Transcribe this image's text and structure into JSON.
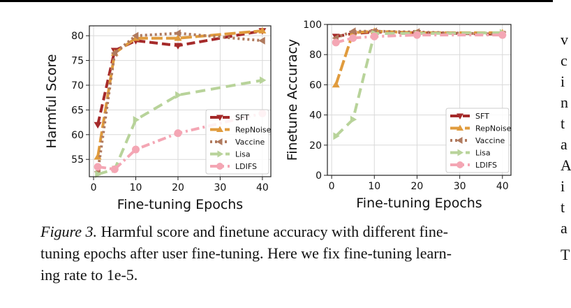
{
  "chart_data": [
    {
      "type": "line",
      "xlabel": "Fine-tuning Epochs",
      "ylabel": "Harmful Score",
      "xlim": [
        -1,
        42
      ],
      "ylim": [
        51.5,
        82
      ],
      "xticks": [
        0,
        10,
        20,
        30,
        40
      ],
      "yticks": [
        55,
        60,
        65,
        70,
        75,
        80
      ],
      "grid": true,
      "legend_position": "lower-right",
      "series": [
        {
          "name": "SFT",
          "color": "#a52a2a",
          "dash": "12,6",
          "marker": "tri-down",
          "x": [
            1,
            5,
            10,
            20,
            40
          ],
          "y": [
            62,
            77,
            79,
            78,
            81
          ]
        },
        {
          "name": "RepNoise",
          "color": "#e09b3d",
          "dash": "16,5",
          "marker": "tri-up",
          "x": [
            1,
            5,
            10,
            20,
            40
          ],
          "y": [
            55.5,
            76.5,
            79.5,
            79.5,
            81
          ]
        },
        {
          "name": "Vaccine",
          "color": "#b07a5e",
          "dash": "3,4",
          "marker": "tri-left",
          "x": [
            1,
            5,
            10,
            20,
            40
          ],
          "y": [
            52.5,
            76.5,
            80,
            80.5,
            79
          ]
        },
        {
          "name": "Lisa",
          "color": "#b8d39a",
          "dash": "14,8",
          "marker": "tri-right",
          "x": [
            1,
            5,
            10,
            20,
            40
          ],
          "y": [
            52,
            53,
            63,
            68,
            71
          ]
        },
        {
          "name": "LDIFS",
          "color": "#f4a6b4",
          "dash": "12,5,3,5",
          "marker": "circle",
          "x": [
            1,
            5,
            10,
            20,
            40
          ],
          "y": [
            53.5,
            53,
            57,
            60.3,
            64.3
          ]
        }
      ]
    },
    {
      "type": "line",
      "xlabel": "Fine-tuning Epochs",
      "ylabel": "Finetune Accuracy",
      "xlim": [
        -1,
        42
      ],
      "ylim": [
        0,
        100
      ],
      "xticks": [
        0,
        10,
        20,
        30,
        40
      ],
      "yticks": [
        0,
        20,
        40,
        60,
        80,
        100
      ],
      "grid": true,
      "legend_position": "lower-right",
      "series": [
        {
          "name": "SFT",
          "color": "#a52a2a",
          "dash": "12,6",
          "marker": "tri-down",
          "x": [
            1,
            5,
            10,
            20,
            40
          ],
          "y": [
            92,
            94,
            95,
            94.5,
            93.5
          ]
        },
        {
          "name": "RepNoise",
          "color": "#e09b3d",
          "dash": "16,5",
          "marker": "tri-up",
          "x": [
            1,
            5,
            10,
            20,
            40
          ],
          "y": [
            60,
            94.5,
            95.5,
            94.5,
            94.5
          ]
        },
        {
          "name": "Vaccine",
          "color": "#b07a5e",
          "dash": "3,4",
          "marker": "tri-left",
          "x": [
            1,
            5,
            10,
            20,
            40
          ],
          "y": [
            91,
            95.5,
            95.5,
            95,
            93.5
          ]
        },
        {
          "name": "Lisa",
          "color": "#b8d39a",
          "dash": "14,8",
          "marker": "tri-right",
          "x": [
            1,
            5,
            10,
            20,
            40
          ],
          "y": [
            26,
            37,
            94,
            94,
            94.5
          ]
        },
        {
          "name": "LDIFS",
          "color": "#f4a6b4",
          "dash": "12,5,3,5",
          "marker": "circle",
          "x": [
            1,
            5,
            10,
            20,
            40
          ],
          "y": [
            88,
            91,
            92,
            93,
            93
          ]
        }
      ]
    }
  ],
  "caption": {
    "figure_label": "Figure 3.",
    "lines": [
      " Harmful score and finetune accuracy with different fine-",
      "tuning epochs after user fine-tuning. Here we fix fine-tuning learn-",
      "ing rate to 1e-5."
    ]
  },
  "side_text": [
    "v",
    "c",
    "i",
    "n",
    "t",
    "a",
    "A",
    "i",
    "t",
    "a",
    "T"
  ]
}
